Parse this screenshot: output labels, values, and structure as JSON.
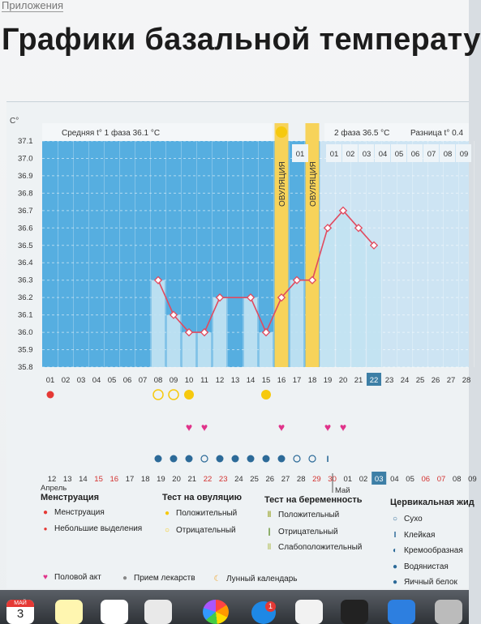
{
  "breadcrumb": "Приложения",
  "page_title": "Графики базальной температу",
  "chart_header": {
    "phase1_avg": "Средняя t° 1 фаза 36.1 °С",
    "phase2_avg": "2 фаза 36.5 °С",
    "diff": "Разница t° 0.4",
    "ovulation_label": "ОВУЛЯЦИЯ",
    "unit": "С°"
  },
  "colors": {
    "bg_phase1": "#56aee0",
    "bg_phase2": "#cde4f3",
    "bar": "#c2e3f2",
    "line": "#e14a5f",
    "ovulation": "#f7d35a"
  },
  "chart_data": {
    "type": "line",
    "ylim": [
      35.8,
      37.1
    ],
    "y_ticks": [
      "35.8",
      "35.9",
      "36.0",
      "36.1",
      "36.2",
      "36.3",
      "36.4",
      "36.5",
      "36.6",
      "36.7",
      "36.8",
      "36.9",
      "37.0",
      "37.1"
    ],
    "x": [
      "01",
      "02",
      "03",
      "04",
      "05",
      "06",
      "07",
      "08",
      "09",
      "10",
      "11",
      "12",
      "13",
      "14",
      "15",
      "16",
      "17",
      "18",
      "19",
      "20",
      "21",
      "22",
      "23",
      "24",
      "25",
      "26",
      "27",
      "28"
    ],
    "values": [
      null,
      null,
      null,
      null,
      null,
      null,
      null,
      36.3,
      36.1,
      36.0,
      36.0,
      36.2,
      null,
      36.2,
      36.0,
      36.2,
      36.3,
      36.3,
      36.6,
      36.7,
      36.6,
      36.5,
      null,
      null,
      null,
      null,
      null,
      null
    ],
    "ovulation_days": [
      16,
      18
    ],
    "today": "22",
    "top_days_after_ovulation": [
      "01"
    ],
    "top_days_phase2": [
      "01",
      "02",
      "03",
      "04",
      "05",
      "06",
      "07",
      "08",
      "09"
    ],
    "calendar_days": [
      "12",
      "13",
      "14",
      "15",
      "16",
      "17",
      "18",
      "19",
      "20",
      "21",
      "22",
      "23",
      "24",
      "25",
      "26",
      "27",
      "28",
      "29",
      "30",
      "01",
      "02",
      "03",
      "04",
      "05",
      "06",
      "07",
      "08",
      "09"
    ],
    "calendar_red": [
      "15",
      "16",
      "22",
      "23",
      "29",
      "30",
      "06",
      "07"
    ],
    "calendar_highlight": "03",
    "month_labels": {
      "start": "Апрель",
      "next": "Май"
    }
  },
  "legend": {
    "menstruation": {
      "title": "Менструация",
      "items": [
        "Менструация",
        "Небольшие выделения"
      ]
    },
    "ovulation_test": {
      "title": "Тест на овуляцию",
      "items": [
        "Положительный",
        "Отрицательный"
      ]
    },
    "pregnancy_test": {
      "title": "Тест на беременность",
      "items": [
        "Положительный",
        "Отрицательный",
        "Слабоположительный"
      ]
    },
    "cervical": {
      "title": "Цервикальная жид",
      "items": [
        "Сухо",
        "Клейкая",
        "Кремообразная",
        "Водянистая",
        "Яичный белок"
      ]
    },
    "other": [
      "Половой акт",
      "Прием лекарств",
      "Лунный календарь"
    ]
  },
  "dock": {
    "calendar_month": "МАЙ",
    "calendar_day": "3",
    "badge": "1"
  }
}
